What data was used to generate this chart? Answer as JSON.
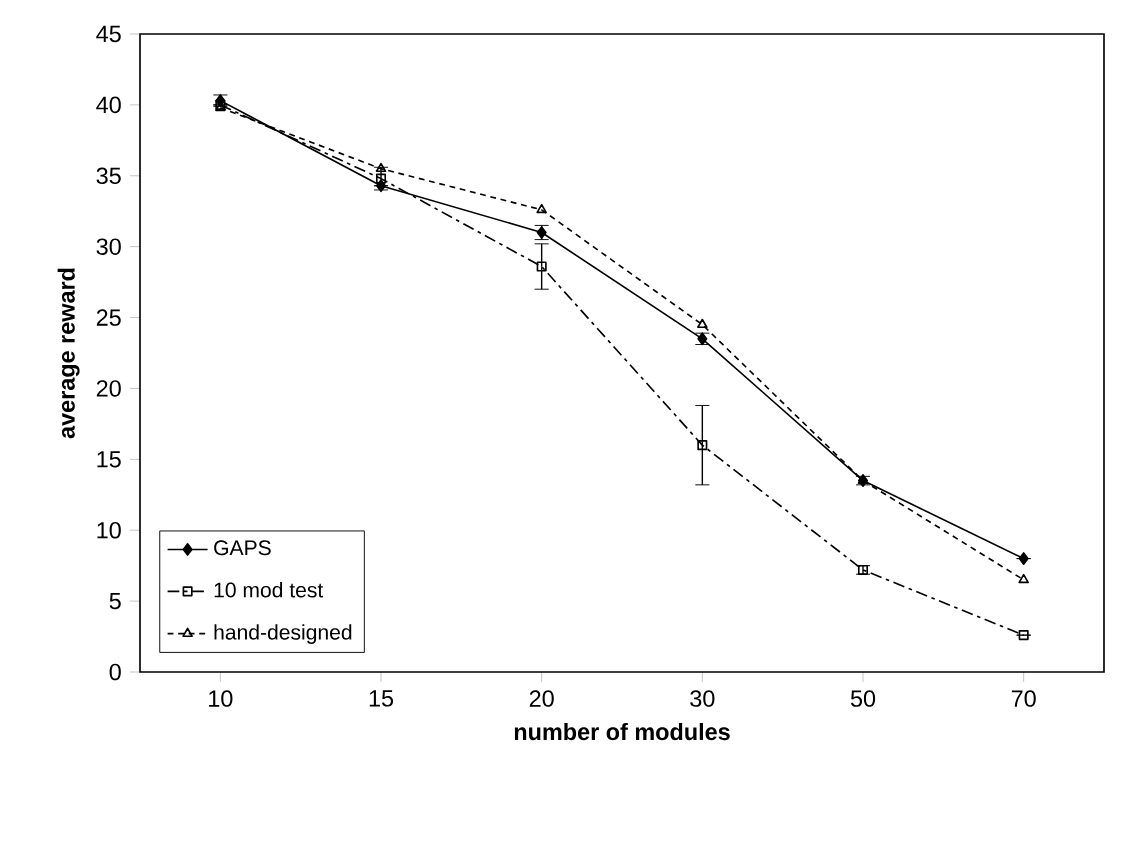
{
  "chart_data": {
    "type": "line",
    "xlabel": "number of modules",
    "ylabel": "average reward",
    "categories": [
      "10",
      "15",
      "20",
      "30",
      "50",
      "70"
    ],
    "ylim": [
      0,
      45
    ],
    "yticks": [
      0,
      5,
      10,
      15,
      20,
      25,
      30,
      35,
      40,
      45
    ],
    "grid": false,
    "legend": "bottom left",
    "series": [
      {
        "name": "GAPS",
        "color": "#000000",
        "marker": "diamond",
        "line_style": "solid",
        "values": [
          40.3,
          34.3,
          31.0,
          23.5,
          13.5,
          8.0
        ],
        "errors": [
          0.4,
          null,
          0.5,
          0.4,
          0.3,
          null
        ]
      },
      {
        "name": "10 mod test",
        "color": "#000000",
        "marker": "square",
        "line_style": "dashdot",
        "values": [
          40.0,
          34.8,
          28.6,
          16.0,
          7.2,
          2.6
        ],
        "errors": [
          null,
          0.8,
          1.6,
          2.8,
          0.3,
          null
        ]
      },
      {
        "name": "hand-designed",
        "color": "#000000",
        "marker": "triangle",
        "line_style": "dashed",
        "values": [
          39.8,
          35.5,
          32.6,
          24.5,
          13.5,
          6.5
        ]
      }
    ]
  }
}
